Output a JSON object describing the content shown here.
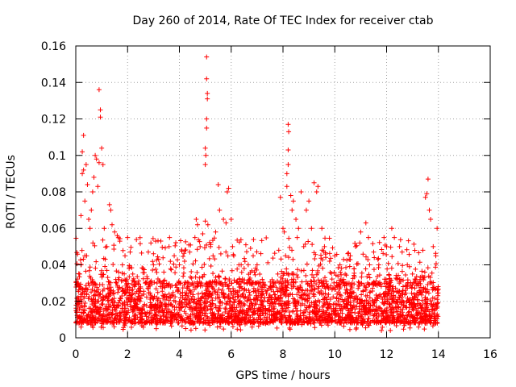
{
  "chart_data": {
    "type": "scatter",
    "title": "Day 260 of 2014, Rate Of TEC Index for receiver ctab",
    "xlabel": "GPS time / hours",
    "ylabel": "ROTI / TECUs",
    "xlim": [
      0,
      16
    ],
    "ylim": [
      0,
      0.16
    ],
    "xticks": [
      0,
      2,
      4,
      6,
      8,
      10,
      12,
      14,
      16
    ],
    "yticks": [
      0,
      0.02,
      0.04,
      0.06,
      0.08,
      0.1,
      0.12,
      0.14,
      0.16
    ],
    "xtick_labels": [
      "0",
      "2",
      "4",
      "6",
      "8",
      "10",
      "12",
      "14",
      "16"
    ],
    "ytick_labels": [
      "0",
      "0.02",
      "0.04",
      "0.06",
      "0.08",
      "0.1",
      "0.12",
      "0.14",
      "0.16"
    ],
    "grid": true,
    "marker": "+",
    "color": "#ff0000",
    "data_x_range": [
      0,
      14
    ],
    "baseline_band": [
      0.008,
      0.03
    ],
    "series": [
      {
        "name": "ROTI",
        "points": [
          [
            0.05,
            0.02
          ],
          [
            0.1,
            0.03
          ],
          [
            0.15,
            0.035
          ],
          [
            0.2,
            0.04
          ],
          [
            0.2,
            0.067
          ],
          [
            0.25,
            0.09
          ],
          [
            0.25,
            0.102
          ],
          [
            0.3,
            0.092
          ],
          [
            0.3,
            0.111
          ],
          [
            0.35,
            0.075
          ],
          [
            0.4,
            0.095
          ],
          [
            0.45,
            0.084
          ],
          [
            0.5,
            0.065
          ],
          [
            0.55,
            0.06
          ],
          [
            0.6,
            0.07
          ],
          [
            0.65,
            0.08
          ],
          [
            0.7,
            0.088
          ],
          [
            0.75,
            0.1
          ],
          [
            0.8,
            0.098
          ],
          [
            0.85,
            0.083
          ],
          [
            0.9,
            0.096
          ],
          [
            0.95,
            0.121
          ],
          [
            0.95,
            0.125
          ],
          [
            0.9,
            0.136
          ],
          [
            1.0,
            0.104
          ],
          [
            1.05,
            0.095
          ],
          [
            1.1,
            0.06
          ],
          [
            1.2,
            0.05
          ],
          [
            1.3,
            0.073
          ],
          [
            1.35,
            0.07
          ],
          [
            1.4,
            0.062
          ],
          [
            1.5,
            0.058
          ],
          [
            1.6,
            0.056
          ],
          [
            1.7,
            0.053
          ],
          [
            1.8,
            0.04
          ],
          [
            1.9,
            0.045
          ],
          [
            2.0,
            0.055
          ],
          [
            2.1,
            0.047
          ],
          [
            2.2,
            0.035
          ],
          [
            2.4,
            0.03
          ],
          [
            2.6,
            0.038
          ],
          [
            2.8,
            0.047
          ],
          [
            2.9,
            0.052
          ],
          [
            3.0,
            0.04
          ],
          [
            3.2,
            0.043
          ],
          [
            3.4,
            0.036
          ],
          [
            3.6,
            0.05
          ],
          [
            3.8,
            0.045
          ],
          [
            4.0,
            0.04
          ],
          [
            4.2,
            0.042
          ],
          [
            4.4,
            0.047
          ],
          [
            4.6,
            0.055
          ],
          [
            4.65,
            0.065
          ],
          [
            4.7,
            0.062
          ],
          [
            4.8,
            0.05
          ],
          [
            4.9,
            0.057
          ],
          [
            5.0,
            0.064
          ],
          [
            5.0,
            0.095
          ],
          [
            5.02,
            0.1
          ],
          [
            5.0,
            0.104
          ],
          [
            5.05,
            0.115
          ],
          [
            5.05,
            0.12
          ],
          [
            5.08,
            0.131
          ],
          [
            5.08,
            0.134
          ],
          [
            5.05,
            0.142
          ],
          [
            5.05,
            0.154
          ],
          [
            5.1,
            0.062
          ],
          [
            5.2,
            0.05
          ],
          [
            5.3,
            0.045
          ],
          [
            5.4,
            0.058
          ],
          [
            5.5,
            0.084
          ],
          [
            5.55,
            0.07
          ],
          [
            5.6,
            0.046
          ],
          [
            5.7,
            0.065
          ],
          [
            5.8,
            0.063
          ],
          [
            5.85,
            0.08
          ],
          [
            5.9,
            0.082
          ],
          [
            6.0,
            0.065
          ],
          [
            6.05,
            0.05
          ],
          [
            6.1,
            0.045
          ],
          [
            6.3,
            0.04
          ],
          [
            6.5,
            0.038
          ],
          [
            6.7,
            0.032
          ],
          [
            6.9,
            0.036
          ],
          [
            7.0,
            0.04
          ],
          [
            7.2,
            0.032
          ],
          [
            7.4,
            0.026
          ],
          [
            7.6,
            0.028
          ],
          [
            7.8,
            0.035
          ],
          [
            7.9,
            0.077
          ],
          [
            8.0,
            0.06
          ],
          [
            8.05,
            0.058
          ],
          [
            8.1,
            0.045
          ],
          [
            8.15,
            0.083
          ],
          [
            8.15,
            0.09
          ],
          [
            8.2,
            0.095
          ],
          [
            8.2,
            0.103
          ],
          [
            8.22,
            0.113
          ],
          [
            8.2,
            0.117
          ],
          [
            8.3,
            0.078
          ],
          [
            8.35,
            0.07
          ],
          [
            8.4,
            0.075
          ],
          [
            8.5,
            0.065
          ],
          [
            8.55,
            0.055
          ],
          [
            8.6,
            0.06
          ],
          [
            8.7,
            0.08
          ],
          [
            8.8,
            0.05
          ],
          [
            8.9,
            0.07
          ],
          [
            9.0,
            0.075
          ],
          [
            9.1,
            0.06
          ],
          [
            9.2,
            0.085
          ],
          [
            9.3,
            0.08
          ],
          [
            9.35,
            0.083
          ],
          [
            9.5,
            0.06
          ],
          [
            9.6,
            0.05
          ],
          [
            9.8,
            0.042
          ],
          [
            10.0,
            0.045
          ],
          [
            10.2,
            0.04
          ],
          [
            10.4,
            0.035
          ],
          [
            10.6,
            0.045
          ],
          [
            10.8,
            0.05
          ],
          [
            11.0,
            0.058
          ],
          [
            11.2,
            0.063
          ],
          [
            11.3,
            0.055
          ],
          [
            11.5,
            0.047
          ],
          [
            11.7,
            0.04
          ],
          [
            11.9,
            0.055
          ],
          [
            12.0,
            0.05
          ],
          [
            12.2,
            0.06
          ],
          [
            12.3,
            0.055
          ],
          [
            12.5,
            0.05
          ],
          [
            12.6,
            0.047
          ],
          [
            12.8,
            0.04
          ],
          [
            13.0,
            0.035
          ],
          [
            13.2,
            0.03
          ],
          [
            13.4,
            0.048
          ],
          [
            13.5,
            0.077
          ],
          [
            13.55,
            0.079
          ],
          [
            13.6,
            0.087
          ],
          [
            13.65,
            0.07
          ],
          [
            13.7,
            0.065
          ],
          [
            13.8,
            0.05
          ],
          [
            13.9,
            0.045
          ],
          [
            13.95,
            0.06
          ]
        ]
      }
    ]
  }
}
